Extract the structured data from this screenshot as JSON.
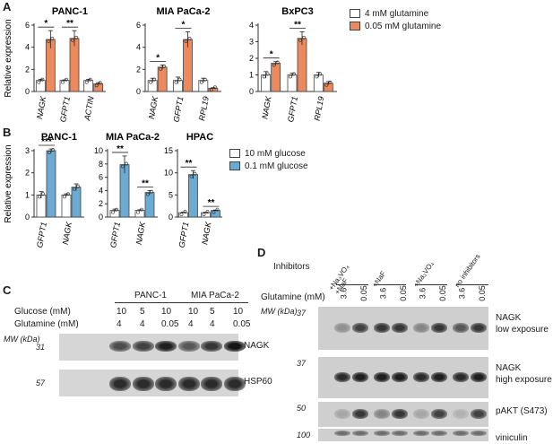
{
  "panels": {
    "a": {
      "letter": "A"
    },
    "b": {
      "letter": "B"
    },
    "c": {
      "letter": "C"
    },
    "d": {
      "letter": "D"
    }
  },
  "colors": {
    "gln_high": "#ffffff",
    "gln_low": "#ec8a5e",
    "glc_high": "#ffffff",
    "glc_low": "#6aaad3",
    "bar_edge": "#444444"
  },
  "legend_a": {
    "series": [
      "4 mM glutamine",
      "0.05 mM glutamine"
    ]
  },
  "legend_b": {
    "series": [
      "10 mM glucose",
      "0.1 mM glucose"
    ]
  },
  "chart_data": [
    {
      "type": "bar",
      "panel": "A",
      "title": "PANC-1",
      "ylabel": "Relative expression",
      "ylim": [
        0,
        6
      ],
      "yticks": [
        0,
        2,
        4,
        6
      ],
      "categories": [
        "NAGK",
        "GFPT1",
        "ACTIN"
      ],
      "series": [
        {
          "name": "4 mM glutamine",
          "values": [
            1.0,
            1.0,
            1.0
          ]
        },
        {
          "name": "0.05 mM glutamine",
          "values": [
            4.7,
            4.8,
            0.7
          ]
        }
      ],
      "errors": [
        [
          0.1,
          0.05,
          0.1
        ],
        [
          0.8,
          0.7,
          0.1
        ]
      ],
      "significance": [
        {
          "category": "NAGK",
          "label": "*"
        },
        {
          "category": "GFPT1",
          "label": "**"
        }
      ]
    },
    {
      "type": "bar",
      "panel": "A",
      "title": "MIA PaCa-2",
      "ylim": [
        0,
        6
      ],
      "yticks": [
        0,
        2,
        4,
        6
      ],
      "categories": [
        "NAGK",
        "GFPT1",
        "RPL19"
      ],
      "series": [
        {
          "name": "4 mM glutamine",
          "values": [
            1.0,
            1.0,
            1.0
          ]
        },
        {
          "name": "0.05 mM glutamine",
          "values": [
            2.2,
            4.7,
            0.3
          ]
        }
      ],
      "errors": [
        [
          0.2,
          0.3,
          0.2
        ],
        [
          0.2,
          0.7,
          0.05
        ]
      ],
      "significance": [
        {
          "category": "NAGK",
          "label": "*"
        },
        {
          "category": "GFPT1",
          "label": "*"
        }
      ]
    },
    {
      "type": "bar",
      "panel": "A",
      "title": "BxPC3",
      "ylim": [
        0,
        4
      ],
      "yticks": [
        0,
        1,
        2,
        3,
        4
      ],
      "categories": [
        "NAGK",
        "GFPT1",
        "RPL19"
      ],
      "series": [
        {
          "name": "4 mM glutamine",
          "values": [
            1.0,
            1.0,
            1.0
          ]
        },
        {
          "name": "0.05 mM glutamine",
          "values": [
            1.7,
            3.2,
            0.5
          ]
        }
      ],
      "errors": [
        [
          0.2,
          0.1,
          0.15
        ],
        [
          0.1,
          0.4,
          0.1
        ]
      ],
      "significance": [
        {
          "category": "NAGK",
          "label": "*"
        },
        {
          "category": "GFPT1",
          "label": "**"
        }
      ]
    },
    {
      "type": "bar",
      "panel": "B",
      "title": "PANC-1",
      "ylabel": "Relative expression",
      "ylim": [
        0,
        3
      ],
      "yticks": [
        0,
        1,
        2,
        3
      ],
      "categories": [
        "GFPT1",
        "NAGK"
      ],
      "series": [
        {
          "name": "10 mM glucose",
          "values": [
            1.0,
            1.0
          ]
        },
        {
          "name": "0.1 mM glucose",
          "values": [
            3.0,
            1.35
          ]
        }
      ],
      "errors": [
        [
          0.15,
          0.05
        ],
        [
          0.08,
          0.15
        ]
      ],
      "significance": [
        {
          "category": "GFPT1",
          "label": "***"
        }
      ]
    },
    {
      "type": "bar",
      "panel": "B",
      "title": "MIA PaCa-2",
      "ylim": [
        0,
        10
      ],
      "yticks": [
        0,
        2,
        4,
        6,
        8,
        10
      ],
      "categories": [
        "GFPT1",
        "NAGK"
      ],
      "series": [
        {
          "name": "10 mM glucose",
          "values": [
            1.0,
            1.0
          ]
        },
        {
          "name": "0.1 mM glucose",
          "values": [
            7.9,
            3.7
          ]
        }
      ],
      "errors": [
        [
          0.2,
          0.1
        ],
        [
          1.3,
          0.3
        ]
      ],
      "significance": [
        {
          "category": "GFPT1",
          "label": "**"
        },
        {
          "category": "NAGK",
          "label": "**"
        }
      ]
    },
    {
      "type": "bar",
      "panel": "B",
      "title": "HPAC",
      "ylim": [
        0,
        15
      ],
      "yticks": [
        0,
        5,
        10,
        15
      ],
      "categories": [
        "GFPT1",
        "NAGK"
      ],
      "series": [
        {
          "name": "10 mM glucose",
          "values": [
            1.0,
            1.0
          ]
        },
        {
          "name": "0.1 mM glucose",
          "values": [
            9.6,
            1.5
          ]
        }
      ],
      "errors": [
        [
          0.1,
          0.1
        ],
        [
          0.9,
          0.1
        ]
      ],
      "significance": [
        {
          "category": "GFPT1",
          "label": "**"
        },
        {
          "category": "NAGK",
          "label": "**"
        }
      ]
    }
  ],
  "panel_c": {
    "row_labels": [
      "Glucose (mM)",
      "Glutamine (mM)"
    ],
    "groups": [
      "PANC-1",
      "MIA PaCa-2"
    ],
    "glucose": [
      "10",
      "5",
      "10",
      "10",
      "5",
      "10"
    ],
    "glutamine": [
      "4",
      "4",
      "0.05",
      "4",
      "4",
      "0.05"
    ],
    "mw_label": "MW (kDa)",
    "blots": [
      {
        "name": "NAGK",
        "mw": "31",
        "intensity": [
          0.75,
          0.8,
          0.95,
          0.7,
          0.85,
          1.0
        ]
      },
      {
        "name": "HSP60",
        "mw": "57",
        "intensity": [
          0.9,
          0.9,
          0.9,
          0.9,
          0.9,
          0.9
        ]
      }
    ]
  },
  "panel_d": {
    "inhibitors_label": "Inhibitors",
    "inhibitor_groups": [
      "+Na₃VO₄\n+NaF",
      "+NaF",
      "+Na₃VO₄",
      "no inhibitors"
    ],
    "glutamine_label": "Glutamine (mM)",
    "glutamine_values": [
      "3.6",
      "0.05",
      "3.6",
      "0.05",
      "3.6",
      "0.05",
      "3.6",
      "0.05"
    ],
    "mw_label": "MW (kDa)",
    "blots": [
      {
        "name": "NAGK\nlow exposure",
        "mw": "37",
        "intensity": [
          0.45,
          0.8,
          0.85,
          0.85,
          0.5,
          0.85,
          0.7,
          0.85
        ]
      },
      {
        "name": "NAGK\nhigh exposure",
        "mw": "37",
        "intensity": [
          0.9,
          0.95,
          0.95,
          0.95,
          0.9,
          0.95,
          0.9,
          0.95
        ]
      },
      {
        "name": "pAKT (S473)",
        "mw": "50",
        "intensity": [
          0.35,
          0.85,
          0.5,
          0.85,
          0.35,
          0.8,
          0.3,
          0.8
        ]
      },
      {
        "name": "viniculin",
        "mw": "100",
        "intensity": [
          0.6,
          0.6,
          0.6,
          0.6,
          0.6,
          0.6,
          0.6,
          0.6
        ]
      }
    ]
  }
}
